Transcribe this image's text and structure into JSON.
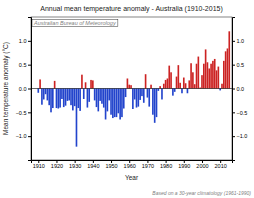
{
  "chart_data": {
    "type": "bar",
    "title": "Annual mean temperature anomaly - Australia (1910-2015)",
    "xlabel": "Year",
    "ylabel": "Mean temperature anomaly (°C)",
    "annotations": [
      "Australian Bureau of Meteorology",
      "Based on a 30-year climatology (1961-1990)"
    ],
    "x": [
      1910,
      1911,
      1912,
      1913,
      1914,
      1915,
      1916,
      1917,
      1918,
      1919,
      1920,
      1921,
      1922,
      1923,
      1924,
      1925,
      1926,
      1927,
      1928,
      1929,
      1930,
      1931,
      1932,
      1933,
      1934,
      1935,
      1936,
      1937,
      1938,
      1939,
      1940,
      1941,
      1942,
      1943,
      1944,
      1945,
      1946,
      1947,
      1948,
      1949,
      1950,
      1951,
      1952,
      1953,
      1954,
      1955,
      1956,
      1957,
      1958,
      1959,
      1960,
      1961,
      1962,
      1963,
      1964,
      1965,
      1966,
      1967,
      1968,
      1969,
      1970,
      1971,
      1972,
      1973,
      1974,
      1975,
      1976,
      1977,
      1978,
      1979,
      1980,
      1981,
      1982,
      1983,
      1984,
      1985,
      1986,
      1987,
      1988,
      1989,
      1990,
      1991,
      1992,
      1993,
      1994,
      1995,
      1996,
      1997,
      1998,
      1999,
      2000,
      2001,
      2002,
      2003,
      2004,
      2005,
      2006,
      2007,
      2008,
      2009,
      2010,
      2011,
      2012,
      2013,
      2014,
      2015
    ],
    "values": [
      -0.09,
      0.19,
      -0.34,
      -0.23,
      -0.12,
      -0.25,
      -0.35,
      -0.5,
      -0.41,
      0.16,
      -0.41,
      -0.42,
      -0.4,
      -0.22,
      -0.39,
      -0.36,
      -0.26,
      -0.25,
      -0.35,
      -0.46,
      -0.37,
      -1.22,
      -0.41,
      -0.47,
      0.29,
      -0.22,
      0.13,
      -0.4,
      -0.28,
      0.18,
      0.17,
      -0.25,
      -0.39,
      -0.48,
      -0.26,
      -0.32,
      -0.4,
      -0.65,
      -0.48,
      -0.25,
      -0.55,
      -0.62,
      -0.6,
      -0.6,
      -0.52,
      -0.65,
      -0.6,
      -0.42,
      -0.18,
      0.21,
      0.08,
      0.07,
      -0.43,
      -0.23,
      -0.4,
      -0.38,
      -0.24,
      -0.16,
      -0.3,
      0.3,
      -0.19,
      -0.38,
      0.08,
      -0.55,
      -0.72,
      -0.6,
      -0.05,
      0.05,
      -0.23,
      0.1,
      0.18,
      0.21,
      0.48,
      0.34,
      -0.15,
      -0.07,
      0.25,
      0.49,
      0.12,
      -0.1,
      0.23,
      0.11,
      -0.1,
      0.17,
      0.53,
      0.34,
      0.09,
      0.52,
      0.67,
      0.02,
      0.28,
      0.52,
      0.82,
      0.55,
      0.42,
      0.52,
      0.58,
      0.62,
      0.38,
      0.46,
      -0.04,
      0.1,
      0.58,
      0.78,
      0.84,
      1.2
    ],
    "colors": [
      "#2244cc",
      "#cc2222",
      "#2244cc",
      "#2244cc",
      "#2244cc",
      "#2244cc",
      "#2244cc",
      "#2244cc",
      "#2244cc",
      "#cc2222",
      "#2244cc",
      "#2244cc",
      "#2244cc",
      "#2244cc",
      "#2244cc",
      "#2244cc",
      "#2244cc",
      "#2244cc",
      "#2244cc",
      "#2244cc",
      "#2244cc",
      "#2244cc",
      "#2244cc",
      "#2244cc",
      "#cc2222",
      "#2244cc",
      "#cc2222",
      "#2244cc",
      "#2244cc",
      "#cc2222",
      "#cc2222",
      "#2244cc",
      "#2244cc",
      "#2244cc",
      "#2244cc",
      "#2244cc",
      "#2244cc",
      "#2244cc",
      "#2244cc",
      "#2244cc",
      "#2244cc",
      "#2244cc",
      "#2244cc",
      "#2244cc",
      "#2244cc",
      "#2244cc",
      "#2244cc",
      "#2244cc",
      "#2244cc",
      "#cc2222",
      "#cc2222",
      "#cc2222",
      "#2244cc",
      "#2244cc",
      "#2244cc",
      "#2244cc",
      "#2244cc",
      "#2244cc",
      "#2244cc",
      "#cc2222",
      "#2244cc",
      "#2244cc",
      "#cc2222",
      "#2244cc",
      "#2244cc",
      "#2244cc",
      "#2244cc",
      "#cc2222",
      "#2244cc",
      "#cc2222",
      "#cc2222",
      "#cc2222",
      "#cc2222",
      "#cc2222",
      "#2244cc",
      "#2244cc",
      "#cc2222",
      "#cc2222",
      "#cc2222",
      "#2244cc",
      "#cc2222",
      "#cc2222",
      "#2244cc",
      "#cc2222",
      "#cc2222",
      "#cc2222",
      "#cc2222",
      "#cc2222",
      "#cc2222",
      "#cc2222",
      "#cc2222",
      "#cc2222",
      "#cc2222",
      "#cc2222",
      "#cc2222",
      "#cc2222",
      "#cc2222",
      "#cc2222",
      "#cc2222",
      "#cc2222",
      "#2244cc",
      "#cc2222",
      "#cc2222",
      "#cc2222",
      "#cc2222",
      "#cc2222"
    ],
    "xlim": [
      1906,
      2016.5
    ],
    "xticks": [
      1910,
      1920,
      1930,
      1940,
      1950,
      1960,
      1970,
      1980,
      1990,
      2000,
      2010
    ],
    "ylim": [
      -1.5,
      1.5
    ],
    "yticks": [
      {
        "value": -1.0,
        "label": "−1.0"
      },
      {
        "value": -0.5,
        "label": "−0.5"
      },
      {
        "value": 0.0,
        "label": "0.0"
      },
      0.5,
      {
        "value": 1.0,
        "label": "1.0"
      }
    ],
    "y2lim": [
      -1.5,
      1.5
    ],
    "y2ticks": [
      {
        "value": -1.0,
        "label": "−1.0"
      },
      {
        "value": -0.5,
        "label": "−0.5"
      },
      {
        "value": 0.0,
        "label": "0.0"
      },
      0.5,
      {
        "value": 1.0,
        "label": "1.0"
      }
    ],
    "grid": false
  }
}
